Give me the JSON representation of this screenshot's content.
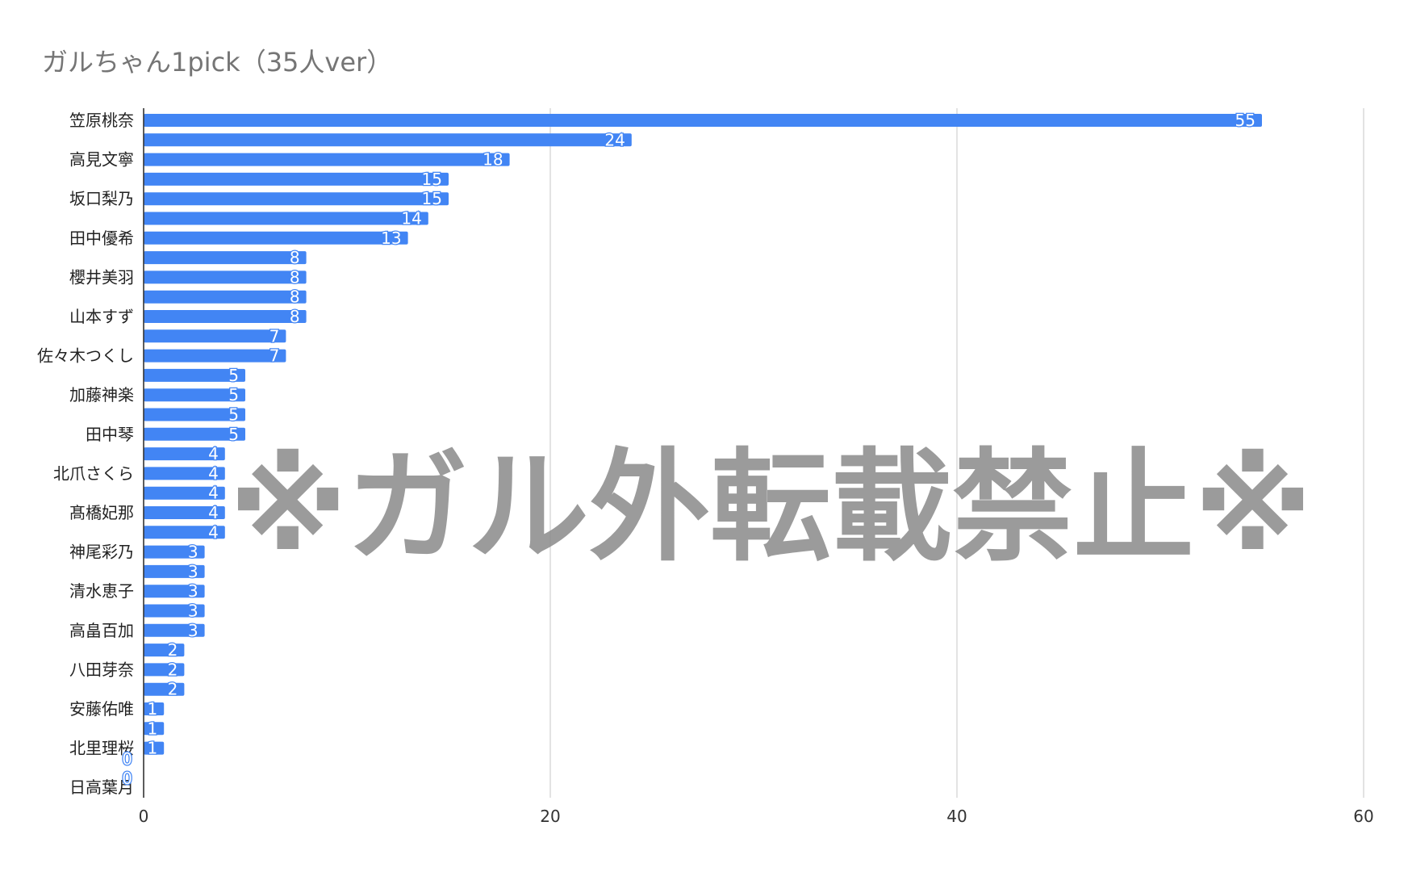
{
  "watermark": "※ガル外転載禁止※",
  "chart_data": {
    "type": "bar",
    "orientation": "horizontal",
    "title": "ガルちゃん1pick（35人ver）",
    "xlabel": "",
    "ylabel": "",
    "xlim": [
      0,
      60
    ],
    "x_ticks": [
      "0",
      "20",
      "40",
      "60"
    ],
    "grid": "vertical",
    "bar_color": "#4285f4",
    "data_labels": true,
    "categories": [
      "笠原桃奈",
      "",
      "高見文寧",
      "",
      "坂口梨乃",
      "",
      "田中優希",
      "",
      "櫻井美羽",
      "",
      "山本すず",
      "",
      "佐々木つくし",
      "",
      "加藤神楽",
      "",
      "田中琴",
      "",
      "北爪さくら",
      "",
      "髙橋妃那",
      "",
      "神尾彩乃",
      "",
      "清水恵子",
      "",
      "高畠百加",
      "",
      "八田芽奈",
      "",
      "安藤佑唯",
      "",
      "北里理桜",
      "",
      "日高葉月"
    ],
    "values": [
      55,
      24,
      18,
      15,
      15,
      14,
      13,
      8,
      8,
      8,
      8,
      7,
      7,
      5,
      5,
      5,
      5,
      4,
      4,
      4,
      4,
      4,
      3,
      3,
      3,
      3,
      3,
      2,
      2,
      2,
      1,
      1,
      1,
      0,
      0
    ]
  }
}
